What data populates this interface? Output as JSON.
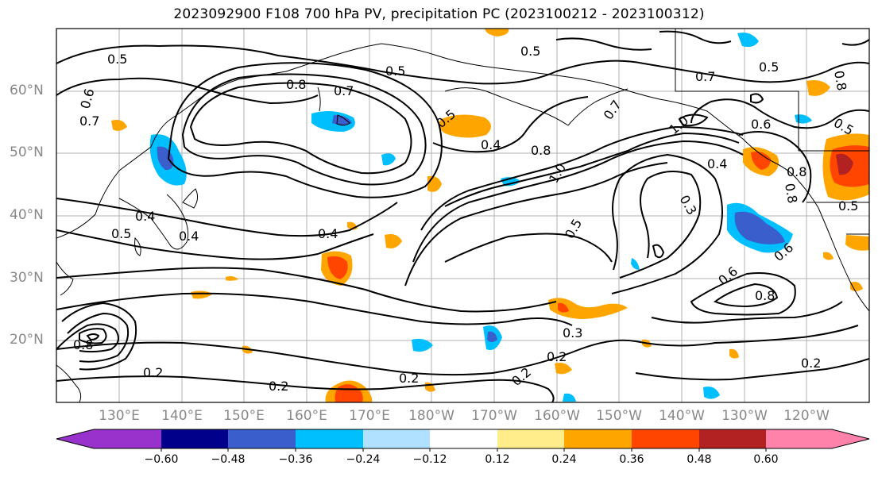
{
  "title": "2023092900 F108 700 hPa PV, precipitation PC (2023100212 - 2023100312)",
  "lat_labels": [
    "60°N",
    "50°N",
    "40°N",
    "30°N",
    "20°N"
  ],
  "lon_labels": [
    "130°E",
    "140°E",
    "150°E",
    "160°E",
    "170°E",
    "180°W",
    "170°W",
    "160°W",
    "150°W",
    "140°W",
    "130°W",
    "120°W"
  ],
  "colorbar": {
    "ticks": [
      "−0.60",
      "−0.48",
      "−0.36",
      "−0.24",
      "−0.12",
      "0.12",
      "0.24",
      "0.36",
      "0.48",
      "0.60"
    ],
    "colors": [
      "#9932cc",
      "#00008b",
      "#3a5fcd",
      "#00bfff",
      "#b0e2ff",
      "#ffffff",
      "#ffec8b",
      "#ffa500",
      "#ff4500",
      "#b22222",
      "#ff82ab"
    ]
  },
  "contour_labels": [
    "0.5",
    "0.6",
    "0.7",
    "0.8",
    "0.7",
    "0.5",
    "0.5",
    "0.7",
    "0.5",
    "0.6",
    "0.5",
    "0.4",
    "0.8",
    "1.0",
    "1.0",
    "0.4",
    "0.5",
    "0.3",
    "0.6",
    "0.8",
    "0.7",
    "0.8",
    "0.4",
    "0.4",
    "0.5",
    "0.4",
    "0.2",
    "0.2",
    "0.2",
    "0.2",
    "0.2",
    "0.3",
    "0.2",
    "0.5",
    "0.8",
    "0.8",
    "0.6",
    "0.5",
    "0.8"
  ]
}
